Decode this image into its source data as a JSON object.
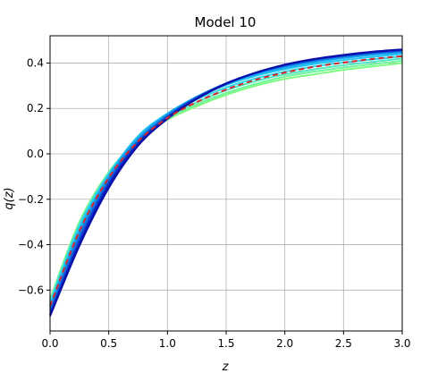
{
  "chart_data": {
    "type": "line",
    "title": "Model 10",
    "xlabel": "z",
    "ylabel": "q(z)",
    "xlim": [
      0,
      3
    ],
    "ylim": [
      -0.78,
      0.52
    ],
    "xticks": [
      "0.0",
      "0.5",
      "1.0",
      "1.5",
      "2.0",
      "2.5",
      "3.0"
    ],
    "yticks": [
      "−0.6",
      "−0.4",
      "−0.2",
      "0.0",
      "0.2",
      "0.4"
    ],
    "xtick_values": [
      0,
      0.5,
      1,
      1.5,
      2,
      2.5,
      3
    ],
    "ytick_values": [
      -0.6,
      -0.4,
      -0.2,
      0,
      0.2,
      0.4
    ],
    "grid": true,
    "legend": "none",
    "x": [
      0,
      0.25,
      0.5,
      0.75,
      1.0,
      1.25,
      1.5,
      1.75,
      2.0,
      2.25,
      2.5,
      2.75,
      3.0
    ],
    "series": [
      {
        "color": "#7ffa82",
        "values": [
          -0.64,
          -0.3,
          -0.08,
          0.06,
          0.15,
          0.21,
          0.26,
          0.3,
          0.33,
          0.35,
          0.37,
          0.385,
          0.4
        ]
      },
      {
        "color": "#6ef59a",
        "values": [
          -0.645,
          -0.305,
          -0.082,
          0.063,
          0.155,
          0.218,
          0.268,
          0.308,
          0.34,
          0.362,
          0.38,
          0.395,
          0.41
        ]
      },
      {
        "color": "#4fe8c0",
        "values": [
          -0.65,
          -0.31,
          -0.085,
          0.067,
          0.162,
          0.228,
          0.28,
          0.32,
          0.35,
          0.372,
          0.39,
          0.405,
          0.42
        ]
      },
      {
        "color": "#2ed6e8",
        "values": [
          -0.66,
          -0.32,
          -0.09,
          0.072,
          0.17,
          0.24,
          0.292,
          0.332,
          0.362,
          0.385,
          0.402,
          0.416,
          0.43
        ]
      },
      {
        "color": "#1ec6f5",
        "values": [
          -0.665,
          -0.325,
          -0.093,
          0.078,
          0.178,
          0.25,
          0.303,
          0.343,
          0.373,
          0.396,
          0.413,
          0.427,
          0.44
        ]
      },
      {
        "color": "#17a6f0",
        "values": [
          -0.675,
          -0.34,
          -0.1,
          0.07,
          0.175,
          0.252,
          0.308,
          0.35,
          0.38,
          0.404,
          0.422,
          0.436,
          0.447
        ]
      },
      {
        "color": "#1385e6",
        "values": [
          -0.685,
          -0.355,
          -0.11,
          0.062,
          0.17,
          0.25,
          0.31,
          0.354,
          0.386,
          0.41,
          0.428,
          0.442,
          0.452
        ]
      },
      {
        "color": "#0f5fda",
        "values": [
          -0.695,
          -0.37,
          -0.12,
          0.055,
          0.165,
          0.248,
          0.311,
          0.356,
          0.389,
          0.413,
          0.431,
          0.445,
          0.455
        ]
      },
      {
        "color": "#0b3ccc",
        "values": [
          -0.705,
          -0.385,
          -0.13,
          0.048,
          0.162,
          0.246,
          0.31,
          0.357,
          0.391,
          0.415,
          0.433,
          0.447,
          0.457
        ]
      },
      {
        "color": "#081fbd",
        "values": [
          -0.71,
          -0.395,
          -0.14,
          0.042,
          0.158,
          0.244,
          0.309,
          0.357,
          0.392,
          0.417,
          0.435,
          0.449,
          0.459
        ]
      },
      {
        "color": "#0a0fa8",
        "values": [
          -0.715,
          -0.405,
          -0.15,
          0.036,
          0.154,
          0.242,
          0.308,
          0.357,
          0.393,
          0.418,
          0.436,
          0.45,
          0.46
        ]
      }
    ],
    "reference": {
      "color": "#d62728",
      "style": "dashed",
      "values": [
        -0.67,
        -0.34,
        -0.105,
        0.055,
        0.158,
        0.228,
        0.283,
        0.326,
        0.358,
        0.383,
        0.402,
        0.418,
        0.43
      ]
    }
  }
}
